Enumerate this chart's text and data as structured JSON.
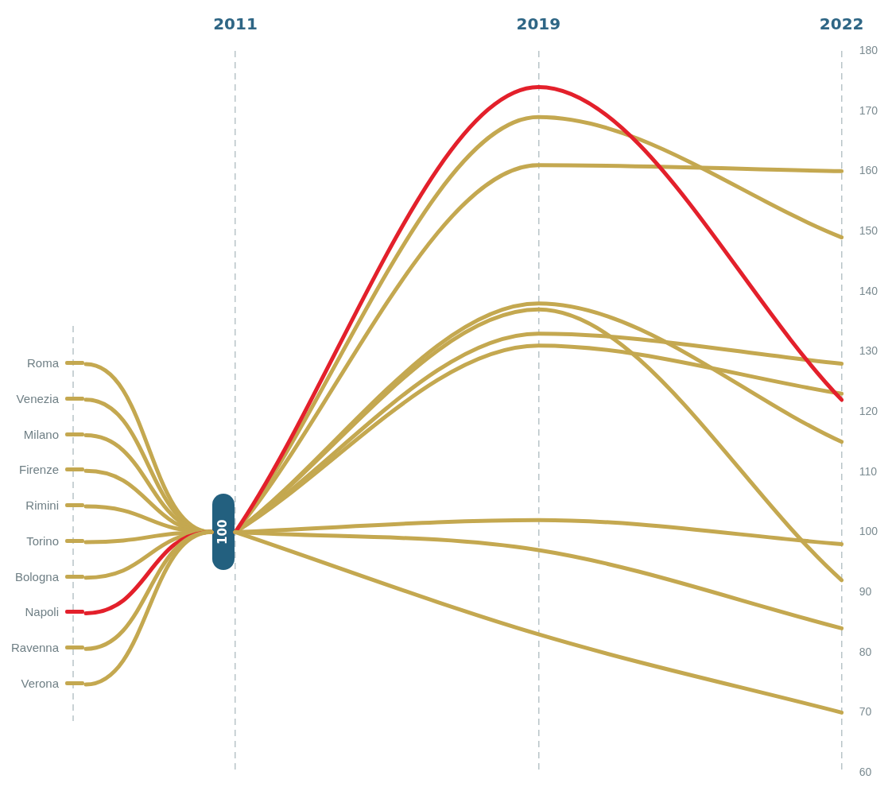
{
  "chart_data": {
    "type": "line",
    "categories": [
      "2011",
      "2019",
      "2022"
    ],
    "series": [
      {
        "name": "Roma",
        "color": "#c4a850",
        "values": [
          100,
          169,
          149
        ]
      },
      {
        "name": "Venezia",
        "color": "#c4a850",
        "values": [
          100,
          161,
          160
        ]
      },
      {
        "name": "Milano",
        "color": "#c4a850",
        "values": [
          100,
          138,
          115
        ]
      },
      {
        "name": "Firenze",
        "color": "#c4a850",
        "values": [
          100,
          137,
          92
        ]
      },
      {
        "name": "Rimini",
        "color": "#c4a850",
        "values": [
          100,
          133,
          128
        ]
      },
      {
        "name": "Torino",
        "color": "#c4a850",
        "values": [
          100,
          131,
          123
        ]
      },
      {
        "name": "Bologna",
        "color": "#c4a850",
        "values": [
          100,
          102,
          98
        ]
      },
      {
        "name": "Napoli",
        "color": "#e3202b",
        "values": [
          100,
          174,
          122
        ]
      },
      {
        "name": "Ravenna",
        "color": "#c4a850",
        "values": [
          100,
          97,
          84
        ]
      },
      {
        "name": "Verona",
        "color": "#c4a850",
        "values": [
          100,
          83,
          70
        ]
      }
    ],
    "ylim": [
      60,
      180
    ],
    "yticks": [
      60,
      70,
      80,
      90,
      100,
      110,
      120,
      130,
      140,
      150,
      160,
      170,
      180
    ],
    "grid": "x",
    "legend": "left",
    "line_style": "solid",
    "annotations": [
      {
        "text": "100",
        "x": "2011",
        "y": 100
      }
    ]
  }
}
